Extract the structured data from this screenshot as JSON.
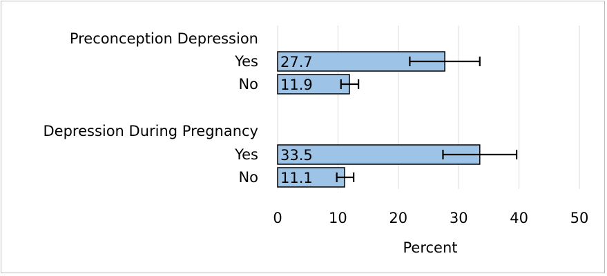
{
  "chart_data": {
    "type": "bar",
    "orientation": "horizontal",
    "groups": [
      {
        "label": "Preconception Depression",
        "bars": [
          {
            "category": "Yes",
            "value": 27.7,
            "ci": [
              21.9,
              33.5
            ],
            "label": "27.7"
          },
          {
            "category": "No",
            "value": 11.9,
            "ci": [
              10.5,
              13.4
            ],
            "label": "11.9"
          }
        ]
      },
      {
        "label": "Depression During Pregnancy",
        "bars": [
          {
            "category": "Yes",
            "value": 33.5,
            "ci": [
              27.4,
              39.6
            ],
            "label": "33.5"
          },
          {
            "category": "No",
            "value": 11.1,
            "ci": [
              9.8,
              12.6
            ],
            "label": "11.1"
          }
        ]
      }
    ],
    "xlabel": "Percent",
    "xlim": [
      0,
      50
    ],
    "xticks": [
      0,
      10,
      20,
      30,
      40,
      50
    ],
    "grid": true,
    "error_bars": true,
    "bar_color": "#9dc3e6",
    "grid_color": "#d9d9d9",
    "frame_color": "#9cc3e6"
  }
}
